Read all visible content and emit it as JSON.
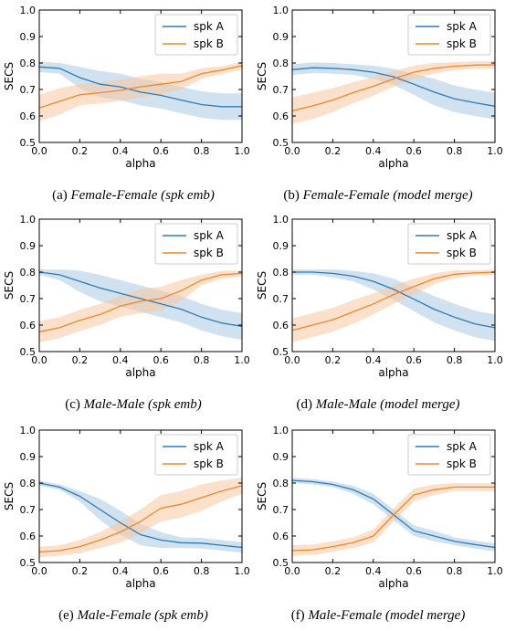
{
  "legend": {
    "a": "spk A",
    "b": "spk B"
  },
  "colors": {
    "a": "#2f7bb6",
    "a_band": "#a9c8e4",
    "b": "#f0862d",
    "b_band": "#f8c9a1"
  },
  "axes": {
    "xlabel": "alpha",
    "ylabel": "SECS"
  },
  "captions": [
    {
      "label": "(a)",
      "title": "Female-Female (spk emb)"
    },
    {
      "label": "(b)",
      "title": "Female-Female (model merge)"
    },
    {
      "label": "(c)",
      "title": "Male-Male (spk emb)"
    },
    {
      "label": "(d)",
      "title": "Male-Male (model merge)"
    },
    {
      "label": "(e)",
      "title": "Male-Female (spk emb)"
    },
    {
      "label": "(f)",
      "title": "Male-Female (model merge)"
    }
  ],
  "chart_data": [
    {
      "type": "line",
      "xlabel": "alpha",
      "ylabel": "SECS",
      "xlim": [
        0.0,
        1.0
      ],
      "ylim": [
        0.5,
        1.0
      ],
      "xticks": [
        "0.0",
        "0.2",
        "0.4",
        "0.6",
        "0.8",
        "1.0"
      ],
      "yticks": [
        "0.5",
        "0.6",
        "0.7",
        "0.8",
        "0.9",
        "1.0"
      ],
      "legend_position": "top-right",
      "x": [
        0,
        0.1,
        0.2,
        0.3,
        0.4,
        0.5,
        0.6,
        0.7,
        0.8,
        0.9,
        1.0
      ],
      "series": [
        {
          "name": "spk A",
          "values": [
            0.785,
            0.78,
            0.745,
            0.72,
            0.71,
            0.69,
            0.678,
            0.66,
            0.643,
            0.635,
            0.635
          ],
          "spread": [
            0.02,
            0.02,
            0.04,
            0.05,
            0.05,
            0.05,
            0.05,
            0.05,
            0.05,
            0.05,
            0.05
          ]
        },
        {
          "name": "spk B",
          "values": [
            0.63,
            0.655,
            0.68,
            0.688,
            0.697,
            0.71,
            0.72,
            0.73,
            0.76,
            0.773,
            0.79
          ],
          "spread": [
            0.05,
            0.05,
            0.04,
            0.04,
            0.04,
            0.04,
            0.04,
            0.03,
            0.02,
            0.015,
            0.015
          ]
        }
      ]
    },
    {
      "type": "line",
      "xlabel": "alpha",
      "ylabel": "SECS",
      "xlim": [
        0.0,
        1.0
      ],
      "ylim": [
        0.5,
        1.0
      ],
      "xticks": [
        "0.0",
        "0.2",
        "0.4",
        "0.6",
        "0.8",
        "1.0"
      ],
      "yticks": [
        "0.5",
        "0.6",
        "0.7",
        "0.8",
        "0.9",
        "1.0"
      ],
      "legend_position": "top-right",
      "x": [
        0,
        0.1,
        0.2,
        0.3,
        0.4,
        0.5,
        0.6,
        0.7,
        0.8,
        0.9,
        1.0
      ],
      "series": [
        {
          "name": "spk A",
          "values": [
            0.775,
            0.782,
            0.78,
            0.775,
            0.765,
            0.748,
            0.72,
            0.69,
            0.665,
            0.65,
            0.637
          ],
          "spread": [
            0.02,
            0.02,
            0.02,
            0.02,
            0.025,
            0.03,
            0.04,
            0.05,
            0.05,
            0.05,
            0.05
          ]
        },
        {
          "name": "spk B",
          "values": [
            0.62,
            0.638,
            0.66,
            0.688,
            0.712,
            0.74,
            0.765,
            0.78,
            0.788,
            0.792,
            0.793
          ],
          "spread": [
            0.05,
            0.05,
            0.045,
            0.04,
            0.035,
            0.03,
            0.025,
            0.02,
            0.015,
            0.015,
            0.015
          ]
        }
      ]
    },
    {
      "type": "line",
      "xlabel": "alpha",
      "ylabel": "SECS",
      "xlim": [
        0.0,
        1.0
      ],
      "ylim": [
        0.5,
        1.0
      ],
      "xticks": [
        "0.0",
        "0.2",
        "0.4",
        "0.6",
        "0.8",
        "1.0"
      ],
      "yticks": [
        "0.5",
        "0.6",
        "0.7",
        "0.8",
        "0.9",
        "1.0"
      ],
      "legend_position": "top-right",
      "x": [
        0,
        0.1,
        0.2,
        0.3,
        0.4,
        0.5,
        0.6,
        0.7,
        0.8,
        0.9,
        1.0
      ],
      "series": [
        {
          "name": "spk A",
          "values": [
            0.8,
            0.79,
            0.765,
            0.74,
            0.72,
            0.7,
            0.68,
            0.66,
            0.63,
            0.608,
            0.595
          ],
          "spread": [
            0.01,
            0.02,
            0.04,
            0.05,
            0.05,
            0.05,
            0.05,
            0.05,
            0.05,
            0.05,
            0.05
          ]
        },
        {
          "name": "spk B",
          "values": [
            0.575,
            0.59,
            0.618,
            0.64,
            0.672,
            0.69,
            0.7,
            0.73,
            0.77,
            0.79,
            0.795
          ],
          "spread": [
            0.04,
            0.04,
            0.04,
            0.04,
            0.04,
            0.045,
            0.045,
            0.04,
            0.02,
            0.015,
            0.01
          ]
        }
      ]
    },
    {
      "type": "line",
      "xlabel": "alpha",
      "ylabel": "SECS",
      "xlim": [
        0.0,
        1.0
      ],
      "ylim": [
        0.5,
        1.0
      ],
      "xticks": [
        "0.0",
        "0.2",
        "0.4",
        "0.6",
        "0.8",
        "1.0"
      ],
      "yticks": [
        "0.5",
        "0.6",
        "0.7",
        "0.8",
        "0.9",
        "1.0"
      ],
      "legend_position": "top-right",
      "x": [
        0,
        0.1,
        0.2,
        0.3,
        0.4,
        0.5,
        0.6,
        0.7,
        0.8,
        0.9,
        1.0
      ],
      "series": [
        {
          "name": "spk A",
          "values": [
            0.8,
            0.8,
            0.795,
            0.785,
            0.765,
            0.735,
            0.698,
            0.66,
            0.63,
            0.605,
            0.59
          ],
          "spread": [
            0.01,
            0.01,
            0.015,
            0.02,
            0.03,
            0.04,
            0.045,
            0.05,
            0.05,
            0.05,
            0.05
          ]
        },
        {
          "name": "spk B",
          "values": [
            0.58,
            0.6,
            0.62,
            0.65,
            0.68,
            0.715,
            0.745,
            0.775,
            0.792,
            0.797,
            0.8
          ],
          "spread": [
            0.045,
            0.045,
            0.045,
            0.045,
            0.04,
            0.035,
            0.03,
            0.02,
            0.015,
            0.01,
            0.01
          ]
        }
      ]
    },
    {
      "type": "line",
      "xlabel": "alpha",
      "ylabel": "SECS",
      "xlim": [
        0.0,
        1.0
      ],
      "ylim": [
        0.5,
        1.0
      ],
      "xticks": [
        "0.0",
        "0.2",
        "0.4",
        "0.6",
        "0.8",
        "1.0"
      ],
      "yticks": [
        "0.5",
        "0.6",
        "0.7",
        "0.8",
        "0.9",
        "1.0"
      ],
      "legend_position": "top-right",
      "x": [
        0,
        0.1,
        0.2,
        0.3,
        0.4,
        0.5,
        0.6,
        0.7,
        0.8,
        0.9,
        1.0
      ],
      "series": [
        {
          "name": "spk A",
          "values": [
            0.8,
            0.785,
            0.75,
            0.7,
            0.65,
            0.605,
            0.585,
            0.575,
            0.573,
            0.565,
            0.557
          ],
          "spread": [
            0.01,
            0.01,
            0.02,
            0.04,
            0.045,
            0.04,
            0.03,
            0.02,
            0.02,
            0.02,
            0.02
          ]
        },
        {
          "name": "spk B",
          "values": [
            0.54,
            0.545,
            0.56,
            0.585,
            0.615,
            0.655,
            0.705,
            0.72,
            0.745,
            0.77,
            0.79
          ],
          "spread": [
            0.02,
            0.02,
            0.025,
            0.03,
            0.04,
            0.045,
            0.05,
            0.05,
            0.05,
            0.04,
            0.03
          ]
        }
      ]
    },
    {
      "type": "line",
      "xlabel": "alpha",
      "ylabel": "SECS",
      "xlim": [
        0.0,
        1.0
      ],
      "ylim": [
        0.5,
        1.0
      ],
      "xticks": [
        "0.0",
        "0.2",
        "0.4",
        "0.6",
        "0.8",
        "1.0"
      ],
      "yticks": [
        "0.5",
        "0.6",
        "0.7",
        "0.8",
        "0.9",
        "1.0"
      ],
      "legend_position": "top-right",
      "x": [
        0,
        0.1,
        0.2,
        0.3,
        0.4,
        0.5,
        0.6,
        0.7,
        0.8,
        0.9,
        1.0
      ],
      "series": [
        {
          "name": "spk A",
          "values": [
            0.81,
            0.805,
            0.795,
            0.775,
            0.74,
            0.68,
            0.62,
            0.6,
            0.58,
            0.568,
            0.557
          ],
          "spread": [
            0.01,
            0.01,
            0.01,
            0.015,
            0.02,
            0.02,
            0.02,
            0.02,
            0.015,
            0.015,
            0.015
          ]
        },
        {
          "name": "spk B",
          "values": [
            0.545,
            0.548,
            0.56,
            0.575,
            0.6,
            0.68,
            0.755,
            0.775,
            0.785,
            0.785,
            0.785
          ],
          "spread": [
            0.02,
            0.02,
            0.02,
            0.02,
            0.025,
            0.025,
            0.025,
            0.02,
            0.015,
            0.015,
            0.015
          ]
        }
      ]
    }
  ]
}
